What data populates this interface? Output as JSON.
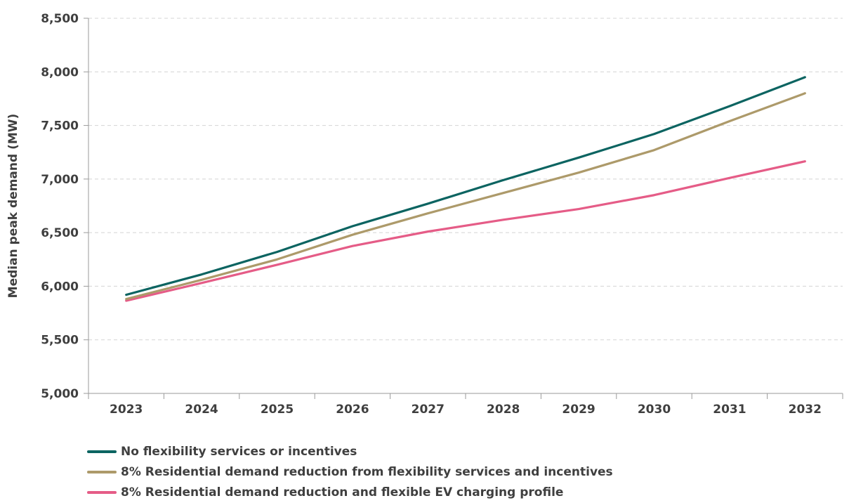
{
  "chart_data": {
    "type": "line",
    "ylabel": "Median peak demand (MW)",
    "xlabel": "",
    "ylim": [
      5000,
      8500
    ],
    "y_ticks": [
      5000,
      5500,
      6000,
      6500,
      7000,
      7500,
      8000,
      8500
    ],
    "y_tick_labels": [
      "5,000",
      "5,500",
      "6,000",
      "6,500",
      "7,000",
      "7,500",
      "8,000",
      "8,500"
    ],
    "categories": [
      "2023",
      "2024",
      "2025",
      "2026",
      "2027",
      "2028",
      "2029",
      "2030",
      "2031",
      "2032"
    ],
    "grid": "horizontal dashed",
    "legend_position": "bottom-left",
    "series": [
      {
        "name": "No flexibility services or incentives",
        "color": "#0c6461",
        "values": [
          5920,
          6110,
          6320,
          6560,
          6770,
          6990,
          7200,
          7420,
          7680,
          7950
        ]
      },
      {
        "name": "8% Residential demand reduction from flexibility services and incentives",
        "color": "#ad9a6a",
        "values": [
          5880,
          6060,
          6250,
          6480,
          6680,
          6870,
          7060,
          7270,
          7540,
          7800
        ]
      },
      {
        "name": "8% Residential demand reduction and flexible EV charging profile",
        "color": "#e55c87",
        "values": [
          5865,
          6030,
          6200,
          6375,
          6510,
          6620,
          6720,
          6850,
          7010,
          7165
        ]
      }
    ]
  }
}
